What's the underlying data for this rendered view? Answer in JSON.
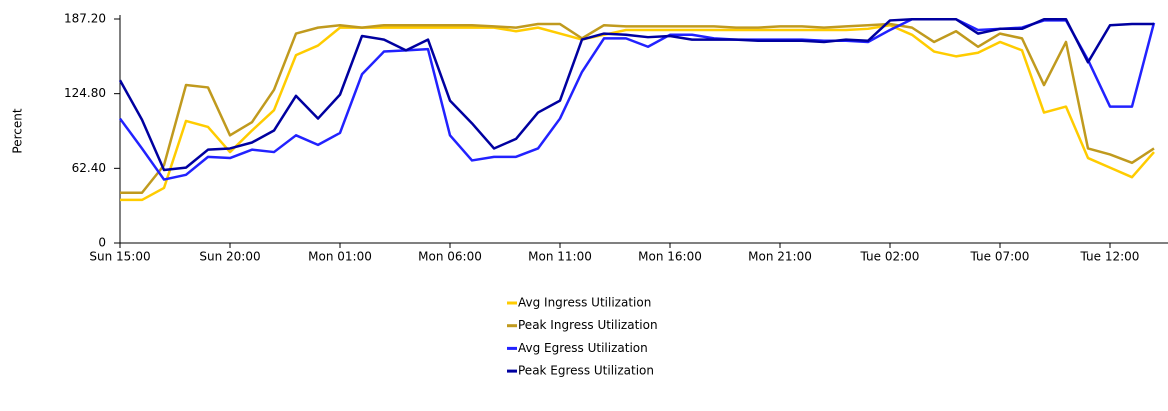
{
  "chart_data": {
    "type": "line",
    "y_label": "Percent",
    "categories": [
      "Sun 15:00",
      null,
      null,
      null,
      null,
      "Sun 20:00",
      null,
      null,
      null,
      null,
      "Mon 01:00",
      null,
      null,
      null,
      null,
      "Mon 06:00",
      null,
      null,
      null,
      null,
      "Mon 11:00",
      null,
      null,
      null,
      null,
      "Mon 16:00",
      null,
      null,
      null,
      null,
      "Mon 21:00",
      null,
      null,
      null,
      null,
      "Tue 02:00",
      null,
      null,
      null,
      null,
      "Tue 07:00",
      null,
      null,
      null,
      null,
      "Tue 12:00",
      null,
      null
    ],
    "series": [
      {
        "name": "Avg Ingress Utilization",
        "color": "#ffcc00",
        "values": [
          36,
          36,
          46,
          102,
          97,
          76,
          94,
          111,
          157,
          165,
          180,
          180,
          180,
          180,
          180,
          180,
          180,
          180,
          177,
          180,
          175,
          170,
          174,
          178,
          178,
          178,
          178,
          178,
          178,
          178,
          178,
          178,
          178,
          178,
          179,
          182,
          174,
          160,
          156,
          159,
          168,
          161,
          109,
          114,
          71,
          63,
          55,
          76
        ]
      },
      {
        "name": "Peak Ingress Utilization",
        "color": "#c09a1e",
        "values": [
          42,
          42,
          65,
          132,
          130,
          90,
          101,
          128,
          175,
          180,
          182,
          180,
          182,
          182,
          182,
          182,
          182,
          181,
          180,
          183,
          183,
          171,
          182,
          181,
          181,
          181,
          181,
          181,
          180,
          180,
          181,
          181,
          180,
          181,
          182,
          183,
          180,
          168,
          177,
          164,
          175,
          171,
          132,
          168,
          79,
          74,
          67,
          79
        ]
      },
      {
        "name": "Avg Egress Utilization",
        "color": "#2222ff",
        "values": [
          104,
          79,
          53,
          57,
          72,
          71,
          78,
          76,
          90,
          82,
          92,
          141,
          160,
          161,
          162,
          90,
          69,
          72,
          72,
          79,
          104,
          143,
          171,
          171,
          164,
          174,
          174,
          171,
          170,
          170,
          170,
          170,
          169,
          169,
          168,
          178,
          187,
          187,
          187,
          178,
          179,
          180,
          186,
          186,
          153,
          114,
          114,
          184
        ]
      },
      {
        "name": "Peak Egress Utilization",
        "color": "#0000a0",
        "values": [
          136,
          103,
          61,
          63,
          78,
          79,
          84,
          94,
          123,
          104,
          124,
          173,
          170,
          161,
          170,
          119,
          100,
          79,
          87,
          109,
          119,
          170,
          175,
          174,
          172,
          173,
          170,
          170,
          170,
          169,
          169,
          169,
          168,
          170,
          169,
          186,
          187,
          187,
          187,
          175,
          179,
          179,
          187,
          187,
          151,
          182,
          183,
          183
        ]
      }
    ],
    "ylim": [
      0,
      187.2
    ],
    "yticks": [
      0,
      {
        "value": 62.4,
        "label": "62.40"
      },
      {
        "value": 124.8,
        "label": "124.80"
      },
      {
        "value": 187.2,
        "label": "187.20"
      }
    ]
  }
}
